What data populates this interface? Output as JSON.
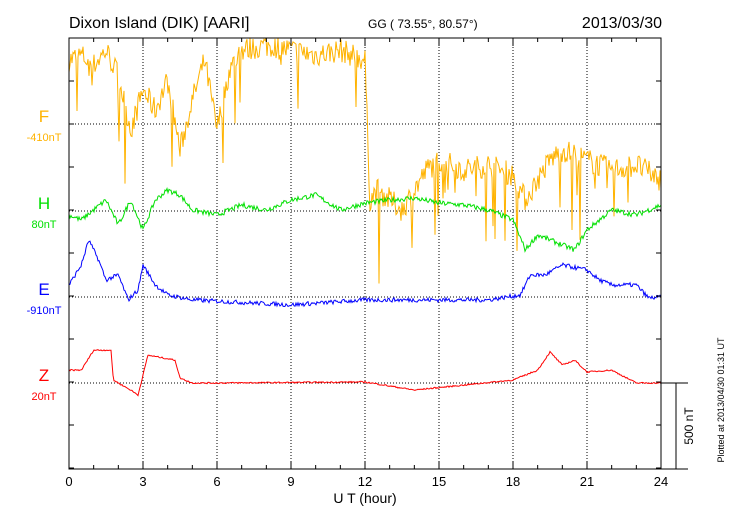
{
  "chart_data": {
    "type": "line",
    "title": "Dixon Island (DIK)  [AARI]",
    "coords": "GG ( 73.55°,  80.57°)",
    "date": "2013/03/30",
    "xlabel": "U T (hour)",
    "xlim": [
      0,
      24
    ],
    "xticks": [
      "0",
      "3",
      "6",
      "9",
      "12",
      "15",
      "18",
      "21",
      "24"
    ],
    "scale_label": "500 nT",
    "scale_nT": 500,
    "plotted_note": "Plotted at 2013/04/30 01:31  UT",
    "series": [
      {
        "name": "F",
        "baseline_label": "-410nT",
        "color": "#ffb300",
        "noise": 140,
        "t": [
          0,
          0.5,
          1,
          1.5,
          2,
          2.5,
          3,
          3.5,
          4,
          4.5,
          5,
          5.5,
          6,
          6.5,
          7,
          8,
          9,
          10,
          11,
          12,
          12.2,
          12.5,
          13,
          13.5,
          14,
          14.5,
          15,
          16,
          17,
          18,
          18.5,
          19,
          19.5,
          20,
          21,
          22,
          23,
          24
        ],
        "v": [
          371,
          400,
          342,
          429,
          284,
          -35,
          197,
          81,
          255,
          -151,
          139,
          371,
          -35,
          313,
          429,
          458,
          429,
          400,
          429,
          371,
          -441,
          -383,
          -441,
          -499,
          -383,
          -267,
          -209,
          -267,
          -238,
          -296,
          -441,
          -325,
          -209,
          -151,
          -209,
          -267,
          -238,
          -325
        ]
      },
      {
        "name": "H",
        "baseline_label": "80nT",
        "color": "#00e000",
        "noise": 30,
        "t": [
          0,
          0.5,
          1,
          1.5,
          2,
          2.5,
          3,
          3.5,
          4,
          4.5,
          5,
          6,
          7,
          8,
          9,
          10,
          11,
          12,
          13,
          14,
          15,
          16,
          17,
          18,
          18.5,
          19,
          20,
          20.5,
          21,
          22,
          23,
          24
        ],
        "v": [
          -23,
          -52,
          6,
          64,
          -81,
          64,
          -110,
          64,
          122,
          93,
          6,
          -23,
          35,
          6,
          64,
          93,
          6,
          46,
          64,
          75,
          46,
          35,
          6,
          -52,
          -226,
          -139,
          -197,
          -226,
          -110,
          6,
          -23,
          35
        ]
      },
      {
        "name": "E",
        "baseline_label": "-910nT",
        "color": "#0000ff",
        "noise": 25,
        "t": [
          0,
          0.5,
          0.8,
          1.2,
          1.5,
          2,
          2.4,
          2.8,
          3,
          3.5,
          4,
          5,
          9,
          12,
          15,
          17,
          18.3,
          18.7,
          19.3,
          20,
          21,
          21.5,
          22,
          23,
          23.5,
          24
        ],
        "v": [
          70,
          186,
          331,
          215,
          99,
          128,
          -17,
          41,
          186,
          70,
          12,
          -17,
          -46,
          -17,
          -17,
          -17,
          12,
          128,
          128,
          186,
          157,
          99,
          70,
          70,
          -6,
          0
        ]
      },
      {
        "name": "Z",
        "baseline_label": "20nT",
        "color": "#ff0000",
        "noise": 8,
        "t": [
          0,
          0.5,
          1,
          1.7,
          1.8,
          2.5,
          2.8,
          3.2,
          4.3,
          4.5,
          5,
          6,
          12,
          14,
          16,
          18,
          19,
          19.5,
          20,
          20.5,
          21,
          22,
          23,
          24
        ],
        "v": [
          75,
          75,
          191,
          191,
          17,
          -41,
          -70,
          162,
          133,
          29,
          0,
          0,
          6,
          -41,
          -12,
          17,
          75,
          180,
          104,
          133,
          64,
          75,
          0,
          0
        ]
      }
    ]
  }
}
